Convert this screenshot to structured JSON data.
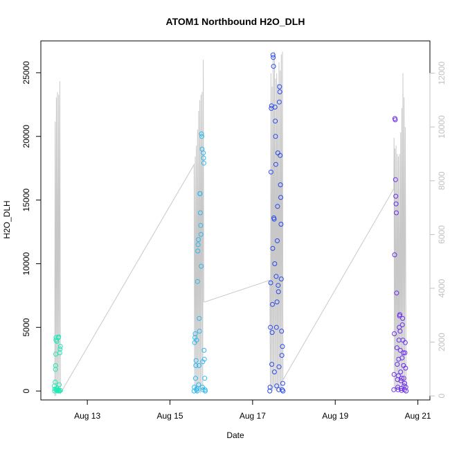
{
  "chart_data": {
    "type": "scatter",
    "title": "ATOM1 Northbound H2O_DLH",
    "xlabel": "Date",
    "ylabel": "H2O_DLH",
    "x_axis": {
      "type": "date",
      "range": [
        "2016-08-11T21:00",
        "2016-08-21T07:00"
      ],
      "ticks": [
        {
          "date": "2016-08-13",
          "label": "Aug 13"
        },
        {
          "date": "2016-08-15",
          "label": "Aug 15"
        },
        {
          "date": "2016-08-17",
          "label": "Aug 17"
        },
        {
          "date": "2016-08-19",
          "label": "Aug 19"
        },
        {
          "date": "2016-08-21",
          "label": "Aug 21"
        }
      ]
    },
    "y_axis_left": {
      "range": [
        -700,
        27500
      ],
      "ticks": [
        0,
        5000,
        10000,
        15000,
        20000,
        25000
      ],
      "tick_labels": [
        "0",
        "5000",
        "10000",
        "15000",
        "20000",
        "25000"
      ]
    },
    "y_axis_right": {
      "range": [
        -150,
        13200
      ],
      "ticks": [
        0,
        2000,
        4000,
        6000,
        8000,
        10000,
        12000
      ],
      "tick_labels": [
        "0",
        "2000",
        "4000",
        "6000",
        "8000",
        "10000",
        "12000"
      ],
      "color": "#c0c0c0"
    },
    "grid": false,
    "line_color": "#c8c8c8",
    "point_style": "open-circle",
    "series": [
      {
        "color": "#1de9b6",
        "points": [
          [
            "2016-08-12T05:00",
            0
          ],
          [
            "2016-08-12T05:10",
            150
          ],
          [
            "2016-08-12T05:20",
            700
          ],
          [
            "2016-08-12T05:30",
            1700
          ],
          [
            "2016-08-12T05:35",
            2000
          ],
          [
            "2016-08-12T05:40",
            2900
          ],
          [
            "2016-08-12T05:45",
            4000
          ],
          [
            "2016-08-12T05:50",
            4200
          ],
          [
            "2016-08-12T06:00",
            100
          ],
          [
            "2016-08-12T06:15",
            50
          ],
          [
            "2016-08-12T06:30",
            200
          ],
          [
            "2016-08-12T06:45",
            0
          ],
          [
            "2016-08-12T07:00",
            100
          ],
          [
            "2016-08-12T07:10",
            4200
          ],
          [
            "2016-08-12T07:20",
            4250
          ],
          [
            "2016-08-12T07:30",
            50
          ],
          [
            "2016-08-12T07:40",
            500
          ],
          [
            "2016-08-12T07:50",
            0
          ],
          [
            "2016-08-12T08:00",
            3000
          ],
          [
            "2016-08-12T08:10",
            3300
          ],
          [
            "2016-08-12T08:20",
            3500
          ],
          [
            "2016-08-12T08:25",
            50
          ],
          [
            "2016-08-12T04:50",
            400
          ],
          [
            "2016-08-12T06:20",
            3900
          ]
        ]
      },
      {
        "color": "#2cb8f0",
        "points": [
          [
            "2016-08-15T14:00",
            0
          ],
          [
            "2016-08-15T14:10",
            300
          ],
          [
            "2016-08-15T14:20",
            3800
          ],
          [
            "2016-08-15T14:30",
            4200
          ],
          [
            "2016-08-15T14:40",
            4500
          ],
          [
            "2016-08-15T14:50",
            1000
          ],
          [
            "2016-08-15T15:00",
            2000
          ],
          [
            "2016-08-15T15:10",
            2400
          ],
          [
            "2016-08-15T15:20",
            100
          ],
          [
            "2016-08-15T15:30",
            4000
          ],
          [
            "2016-08-15T15:40",
            200
          ],
          [
            "2016-08-15T15:50",
            0
          ],
          [
            "2016-08-15T16:00",
            8600
          ],
          [
            "2016-08-15T16:10",
            11000
          ],
          [
            "2016-08-15T16:20",
            11500
          ],
          [
            "2016-08-15T16:30",
            11900
          ],
          [
            "2016-08-15T16:40",
            500
          ],
          [
            "2016-08-15T16:50",
            2000
          ],
          [
            "2016-08-15T17:00",
            5700
          ],
          [
            "2016-08-15T17:10",
            4700
          ],
          [
            "2016-08-15T17:20",
            15500
          ],
          [
            "2016-08-15T17:30",
            15500
          ],
          [
            "2016-08-15T17:40",
            14000
          ],
          [
            "2016-08-15T17:50",
            13000
          ],
          [
            "2016-08-15T18:00",
            12300
          ],
          [
            "2016-08-15T18:10",
            9800
          ],
          [
            "2016-08-15T18:20",
            20200
          ],
          [
            "2016-08-15T18:30",
            20000
          ],
          [
            "2016-08-15T18:40",
            19000
          ],
          [
            "2016-08-15T18:50",
            300
          ],
          [
            "2016-08-15T19:00",
            2300
          ],
          [
            "2016-08-15T19:10",
            100
          ],
          [
            "2016-08-15T19:20",
            18700
          ],
          [
            "2016-08-15T19:30",
            18300
          ],
          [
            "2016-08-15T19:40",
            17900
          ],
          [
            "2016-08-15T19:50",
            3200
          ],
          [
            "2016-08-15T20:00",
            2500
          ],
          [
            "2016-08-15T20:10",
            1000
          ],
          [
            "2016-08-15T20:20",
            100
          ],
          [
            "2016-08-15T20:30",
            0
          ]
        ]
      },
      {
        "color": "#2848ee",
        "points": [
          [
            "2016-08-17T10:00",
            0
          ],
          [
            "2016-08-17T10:10",
            300
          ],
          [
            "2016-08-17T10:20",
            5000
          ],
          [
            "2016-08-17T10:30",
            8500
          ],
          [
            "2016-08-17T10:40",
            17200
          ],
          [
            "2016-08-17T10:50",
            22200
          ],
          [
            "2016-08-17T11:00",
            22400
          ],
          [
            "2016-08-17T11:10",
            2100
          ],
          [
            "2016-08-17T11:20",
            4600
          ],
          [
            "2016-08-17T11:30",
            6800
          ],
          [
            "2016-08-17T11:40",
            11200
          ],
          [
            "2016-08-17T11:50",
            26400
          ],
          [
            "2016-08-17T12:00",
            26200
          ],
          [
            "2016-08-17T12:10",
            25500
          ],
          [
            "2016-08-17T12:20",
            13600
          ],
          [
            "2016-08-17T12:30",
            13500
          ],
          [
            "2016-08-17T12:40",
            1500
          ],
          [
            "2016-08-17T12:50",
            10000
          ],
          [
            "2016-08-17T13:00",
            22300
          ],
          [
            "2016-08-17T13:10",
            21200
          ],
          [
            "2016-08-17T13:20",
            20000
          ],
          [
            "2016-08-17T13:30",
            17800
          ],
          [
            "2016-08-17T13:40",
            9000
          ],
          [
            "2016-08-17T13:50",
            5000
          ],
          [
            "2016-08-17T14:00",
            400
          ],
          [
            "2016-08-17T14:10",
            7000
          ],
          [
            "2016-08-17T14:20",
            11800
          ],
          [
            "2016-08-17T14:30",
            14500
          ],
          [
            "2016-08-17T14:40",
            18700
          ],
          [
            "2016-08-17T14:50",
            8300
          ],
          [
            "2016-08-17T15:00",
            7800
          ],
          [
            "2016-08-17T15:10",
            100
          ],
          [
            "2016-08-17T15:20",
            1900
          ],
          [
            "2016-08-17T15:30",
            22700
          ],
          [
            "2016-08-17T15:40",
            23900
          ],
          [
            "2016-08-17T15:50",
            23500
          ],
          [
            "2016-08-17T16:00",
            18500
          ],
          [
            "2016-08-17T16:10",
            16200
          ],
          [
            "2016-08-17T16:20",
            15200
          ],
          [
            "2016-08-17T16:30",
            13100
          ],
          [
            "2016-08-17T16:40",
            8800
          ],
          [
            "2016-08-17T16:50",
            4700
          ],
          [
            "2016-08-17T17:00",
            2800
          ],
          [
            "2016-08-17T17:10",
            100
          ],
          [
            "2016-08-17T17:20",
            3500
          ],
          [
            "2016-08-17T17:30",
            600
          ],
          [
            "2016-08-17T17:40",
            0
          ]
        ]
      },
      {
        "color": "#6a2cf0",
        "points": [
          [
            "2016-08-20T10:00",
            100
          ],
          [
            "2016-08-20T10:10",
            1300
          ],
          [
            "2016-08-20T10:20",
            4500
          ],
          [
            "2016-08-20T10:30",
            10700
          ],
          [
            "2016-08-20T10:40",
            21400
          ],
          [
            "2016-08-20T10:50",
            21300
          ],
          [
            "2016-08-20T11:00",
            16600
          ],
          [
            "2016-08-20T11:10",
            15300
          ],
          [
            "2016-08-20T11:20",
            14700
          ],
          [
            "2016-08-20T11:30",
            14000
          ],
          [
            "2016-08-20T11:40",
            7700
          ],
          [
            "2016-08-20T11:50",
            3400
          ],
          [
            "2016-08-20T12:00",
            2100
          ],
          [
            "2016-08-20T12:10",
            900
          ],
          [
            "2016-08-20T12:20",
            300
          ],
          [
            "2016-08-20T12:30",
            100
          ],
          [
            "2016-08-20T12:40",
            1200
          ],
          [
            "2016-08-20T12:50",
            2500
          ],
          [
            "2016-08-20T13:00",
            4000
          ],
          [
            "2016-08-20T13:10",
            5000
          ],
          [
            "2016-08-20T13:20",
            5900
          ],
          [
            "2016-08-20T13:30",
            6000
          ],
          [
            "2016-08-20T13:40",
            4700
          ],
          [
            "2016-08-20T13:50",
            3200
          ],
          [
            "2016-08-20T14:00",
            1500
          ],
          [
            "2016-08-20T14:10",
            800
          ],
          [
            "2016-08-20T14:20",
            200
          ],
          [
            "2016-08-20T14:30",
            50
          ],
          [
            "2016-08-20T14:40",
            1000
          ],
          [
            "2016-08-20T14:50",
            2600
          ],
          [
            "2016-08-20T15:00",
            5200
          ],
          [
            "2016-08-20T15:10",
            5700
          ],
          [
            "2016-08-20T15:20",
            4000
          ],
          [
            "2016-08-20T15:30",
            3000
          ],
          [
            "2016-08-20T15:40",
            2000
          ],
          [
            "2016-08-20T15:50",
            1000
          ],
          [
            "2016-08-20T16:00",
            400
          ],
          [
            "2016-08-20T16:10",
            100
          ],
          [
            "2016-08-20T16:20",
            600
          ],
          [
            "2016-08-20T16:30",
            3000
          ],
          [
            "2016-08-20T16:40",
            3800
          ],
          [
            "2016-08-20T16:50",
            1800
          ],
          [
            "2016-08-20T17:00",
            300
          ],
          [
            "2016-08-20T17:10",
            0
          ]
        ]
      }
    ],
    "line_series_right_axis": {
      "points": [
        [
          "2016-08-12T05:00",
          0
        ],
        [
          "2016-08-12T05:20",
          10200
        ],
        [
          "2016-08-12T05:40",
          0
        ],
        [
          "2016-08-12T06:00",
          11100
        ],
        [
          "2016-08-12T06:20",
          200
        ],
        [
          "2016-08-12T06:40",
          11300
        ],
        [
          "2016-08-12T07:00",
          100
        ],
        [
          "2016-08-12T07:20",
          11200
        ],
        [
          "2016-08-12T07:40",
          300
        ],
        [
          "2016-08-12T08:00",
          11700
        ],
        [
          "2016-08-12T08:25",
          100
        ],
        [
          "2016-08-15T14:00",
          8600
        ],
        [
          "2016-08-15T14:20",
          300
        ],
        [
          "2016-08-15T14:40",
          8900
        ],
        [
          "2016-08-15T15:00",
          200
        ],
        [
          "2016-08-15T15:20",
          9300
        ],
        [
          "2016-08-15T15:40",
          100
        ],
        [
          "2016-08-15T16:00",
          9900
        ],
        [
          "2016-08-15T16:20",
          300
        ],
        [
          "2016-08-15T16:40",
          10600
        ],
        [
          "2016-08-15T17:00",
          200
        ],
        [
          "2016-08-15T17:20",
          11000
        ],
        [
          "2016-08-15T17:40",
          100
        ],
        [
          "2016-08-15T18:00",
          11200
        ],
        [
          "2016-08-15T18:20",
          300
        ],
        [
          "2016-08-15T18:40",
          11300
        ],
        [
          "2016-08-15T19:00",
          200
        ],
        [
          "2016-08-15T19:20",
          12500
        ],
        [
          "2016-08-15T19:40",
          3500
        ],
        [
          "2016-08-15T20:30",
          3500
        ],
        [
          "2016-08-17T10:00",
          4300
        ],
        [
          "2016-08-17T10:20",
          200
        ],
        [
          "2016-08-17T10:40",
          12000
        ],
        [
          "2016-08-17T11:00",
          300
        ],
        [
          "2016-08-17T11:20",
          11500
        ],
        [
          "2016-08-17T11:40",
          200
        ],
        [
          "2016-08-17T12:00",
          12600
        ],
        [
          "2016-08-17T12:20",
          300
        ],
        [
          "2016-08-17T12:40",
          12800
        ],
        [
          "2016-08-17T13:00",
          200
        ],
        [
          "2016-08-17T13:20",
          11800
        ],
        [
          "2016-08-17T13:40",
          300
        ],
        [
          "2016-08-17T14:00",
          12000
        ],
        [
          "2016-08-17T14:20",
          200
        ],
        [
          "2016-08-17T14:40",
          11600
        ],
        [
          "2016-08-17T15:00",
          300
        ],
        [
          "2016-08-17T15:20",
          12400
        ],
        [
          "2016-08-17T15:40",
          200
        ],
        [
          "2016-08-17T16:00",
          12100
        ],
        [
          "2016-08-17T16:20",
          300
        ],
        [
          "2016-08-17T16:40",
          12700
        ],
        [
          "2016-08-17T17:00",
          200
        ],
        [
          "2016-08-17T17:20",
          12800
        ],
        [
          "2016-08-17T17:40",
          600
        ],
        [
          "2016-08-20T10:00",
          7700
        ],
        [
          "2016-08-20T10:10",
          9600
        ],
        [
          "2016-08-20T10:20",
          200
        ],
        [
          "2016-08-20T10:40",
          9200
        ],
        [
          "2016-08-20T11:00",
          300
        ],
        [
          "2016-08-20T11:20",
          9300
        ],
        [
          "2016-08-20T11:40",
          200
        ],
        [
          "2016-08-20T12:00",
          9000
        ],
        [
          "2016-08-20T12:20",
          300
        ],
        [
          "2016-08-20T12:40",
          8900
        ],
        [
          "2016-08-20T13:00",
          200
        ],
        [
          "2016-08-20T13:20",
          9000
        ],
        [
          "2016-08-20T13:40",
          300
        ],
        [
          "2016-08-20T14:00",
          9800
        ],
        [
          "2016-08-20T14:20",
          200
        ],
        [
          "2016-08-20T14:40",
          10700
        ],
        [
          "2016-08-20T15:00",
          300
        ],
        [
          "2016-08-20T15:20",
          12000
        ],
        [
          "2016-08-20T15:40",
          200
        ],
        [
          "2016-08-20T16:00",
          11100
        ],
        [
          "2016-08-20T16:20",
          300
        ],
        [
          "2016-08-20T16:40",
          10000
        ],
        [
          "2016-08-20T17:10",
          100
        ]
      ]
    }
  }
}
